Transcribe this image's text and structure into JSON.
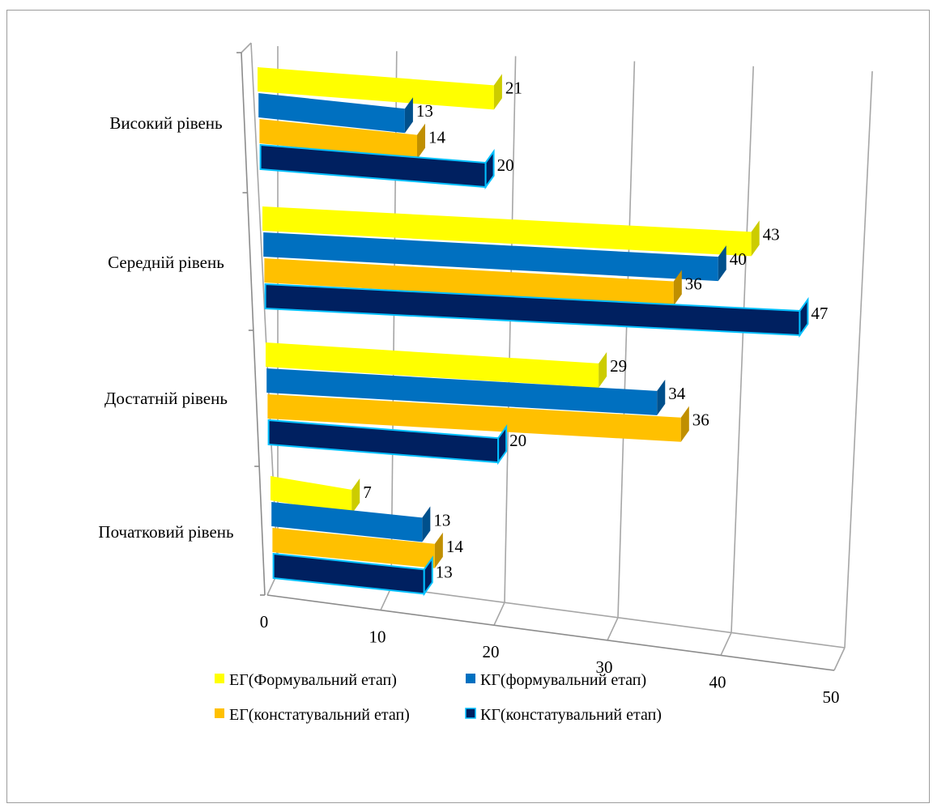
{
  "chart_data": {
    "type": "bar",
    "orientation": "horizontal",
    "three_d": true,
    "categories": [
      "Високий рівень",
      "Середній рівень",
      "Достатній рівень",
      "Початковий рівень"
    ],
    "series": [
      {
        "name": "ЕГ(Формувальний етап)",
        "values": [
          21,
          43,
          29,
          7
        ],
        "color": "#ffff00",
        "side": "#cccc00"
      },
      {
        "name": "КГ(формувальний етап)",
        "values": [
          13,
          40,
          34,
          13
        ],
        "color": "#0070c0",
        "side": "#00508c"
      },
      {
        "name": "ЕГ(констатувальний етап)",
        "values": [
          14,
          36,
          36,
          14
        ],
        "color": "#ffc000",
        "side": "#c08f00"
      },
      {
        "name": "КГ(констатувальний етап)",
        "values": [
          20,
          47,
          20,
          13
        ],
        "color": "#002060",
        "side": "#00c0ff"
      }
    ],
    "x_ticks": [
      "0",
      "10",
      "20",
      "30",
      "40",
      "50"
    ],
    "xlim": [
      0,
      50
    ],
    "grid": true,
    "legend_position": "bottom"
  }
}
